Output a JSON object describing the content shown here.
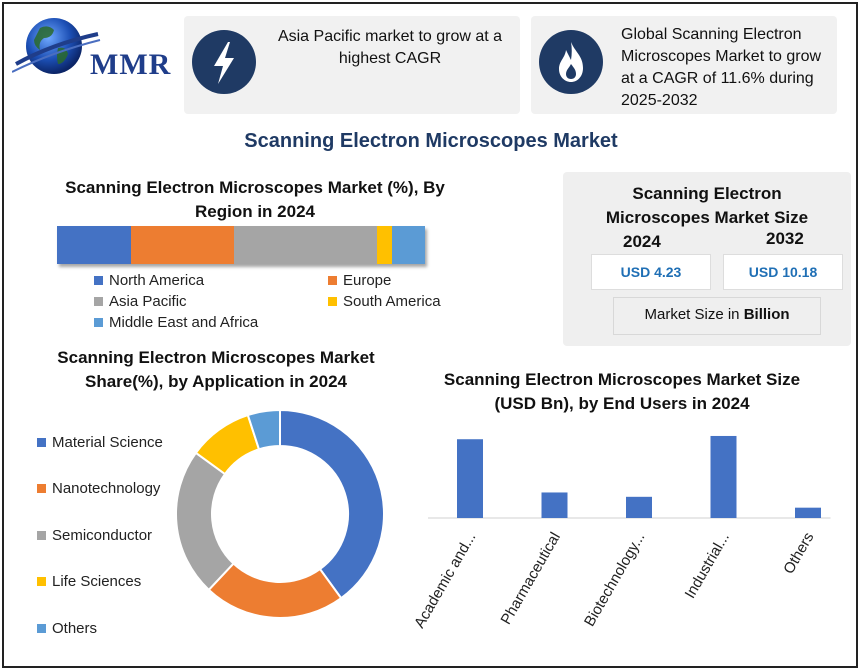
{
  "logo": {
    "text": "MMR"
  },
  "cards": [
    {
      "icon": "lightning-bolt-icon",
      "text": "Asia Pacific market to grow at a highest CAGR"
    },
    {
      "icon": "flame-icon",
      "text": "Global Scanning Electron Microscopes Market to grow at a CAGR of 11.6% during 2025-2032"
    }
  ],
  "main_title": "Scanning Electron Microscopes Market",
  "market_size": {
    "title": "Scanning Electron Microscopes Market Size",
    "year_2024": "2024",
    "year_2032": "2032",
    "value_2024": "USD 4.23",
    "value_2032": "USD 10.18",
    "unit_prefix": "Market Size in ",
    "unit_bold": "Billion"
  },
  "colors": {
    "blue": "#4472c4",
    "orange": "#ed7d31",
    "gray": "#a5a5a5",
    "yellow": "#ffc000",
    "lightblue": "#5b9bd5",
    "navy": "#1f3a64"
  },
  "chart_data": [
    {
      "type": "bar",
      "stacked": true,
      "orientation": "horizontal",
      "title": "Scanning Electron Microscopes Market (%), By Region in 2024",
      "series": [
        {
          "name": "North America",
          "values": [
            20
          ]
        },
        {
          "name": "Europe",
          "values": [
            28
          ]
        },
        {
          "name": "Asia Pacific",
          "values": [
            39
          ]
        },
        {
          "name": "South America",
          "values": [
            4
          ]
        },
        {
          "name": "Middle East and Africa",
          "values": [
            9
          ]
        }
      ],
      "legend": "bottom"
    },
    {
      "type": "pie",
      "donut": true,
      "title": "Scanning Electron Microscopes Market Share(%), by Application in 2024",
      "labels": [
        "Material Science",
        "Nanotechnology",
        "Semiconductor",
        "Life Sciences",
        "Others"
      ],
      "values": [
        40,
        22,
        23,
        10,
        5
      ],
      "legend": "left"
    },
    {
      "type": "bar",
      "title": "Scanning Electron Microscopes Market Size (USD Bn), by End Users in 2024",
      "categories": [
        "Academic and...",
        "Pharmaceutical",
        "Biotechnology...",
        "Industrial...",
        "Others"
      ],
      "values": [
        1.45,
        0.47,
        0.39,
        1.51,
        0.19
      ],
      "ylim": [
        0,
        1.6
      ],
      "grid": false
    }
  ]
}
